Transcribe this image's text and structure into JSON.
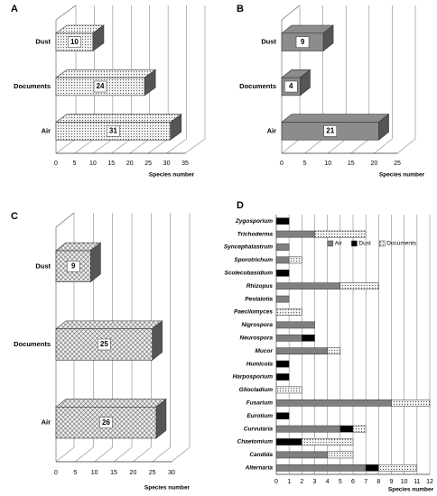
{
  "chart_data": [
    {
      "type": "bar",
      "panel": "A",
      "categories": [
        "Dust",
        "Documents",
        "Air"
      ],
      "values": [
        10,
        24,
        31
      ],
      "color": "#f2f2f2",
      "fill_pattern": "dots",
      "xlim": [
        0,
        35
      ],
      "xticks": [
        0,
        5,
        10,
        15,
        20,
        25,
        30,
        35
      ],
      "xlabel": "Species number",
      "grid": true
    },
    {
      "type": "bar",
      "panel": "B",
      "categories": [
        "Dust",
        "Documents",
        "Air"
      ],
      "values": [
        9,
        4,
        21
      ],
      "color": "#8c8c8c",
      "fill_pattern": "solid",
      "xlim": [
        0,
        25
      ],
      "xticks": [
        0,
        5,
        10,
        15,
        20,
        25
      ],
      "xlabel": "Species number",
      "grid": true
    },
    {
      "type": "bar",
      "panel": "C",
      "categories": [
        "Dust",
        "Documents",
        "Air"
      ],
      "values": [
        9,
        25,
        26
      ],
      "color": "#f2f2f2",
      "fill_pattern": "checks",
      "xlim": [
        0,
        30
      ],
      "xticks": [
        0,
        5,
        10,
        15,
        20,
        25,
        30
      ],
      "xlabel": "Species number",
      "grid": true
    },
    {
      "type": "stackedbar",
      "panel": "D",
      "categories": [
        "Zygosporium",
        "Trichoderma",
        "Syncephalastrum",
        "Sporotrichum",
        "Scolecobasidium",
        "Rhizopus",
        "Pestalotia",
        "Paecilomyces",
        "Nigrospora",
        "Neurospora",
        "Mucor",
        "Humicola",
        "Harposporium",
        "Gliocladium",
        "Fusarium",
        "Eurotium",
        "Curvularia",
        "Chaetomium",
        "Candida",
        "Alternaria"
      ],
      "series": [
        {
          "name": "Air",
          "color": "#7f7f7f",
          "fill_pattern": "solid",
          "values": [
            0,
            3,
            1,
            1,
            0,
            5,
            1,
            0,
            3,
            2,
            4,
            0,
            0,
            0,
            9,
            0,
            5,
            0,
            4,
            7
          ]
        },
        {
          "name": "Dust",
          "color": "#000000",
          "fill_pattern": "solid",
          "values": [
            1,
            0,
            0,
            0,
            1,
            0,
            0,
            0,
            0,
            1,
            0,
            1,
            1,
            0,
            0,
            1,
            1,
            2,
            0,
            1
          ]
        },
        {
          "name": "Documents",
          "color": "#f2f2f2",
          "fill_pattern": "dots",
          "values": [
            0,
            4,
            0,
            1,
            0,
            3,
            0,
            2,
            0,
            0,
            1,
            0,
            0,
            2,
            3,
            0,
            1,
            4,
            2,
            3
          ]
        }
      ],
      "xlim": [
        0,
        12
      ],
      "xticks": [
        0,
        1,
        2,
        3,
        4,
        5,
        6,
        7,
        8,
        9,
        10,
        11,
        12
      ],
      "xlabel": "Species number",
      "grid": true,
      "legend": "upper right"
    }
  ]
}
